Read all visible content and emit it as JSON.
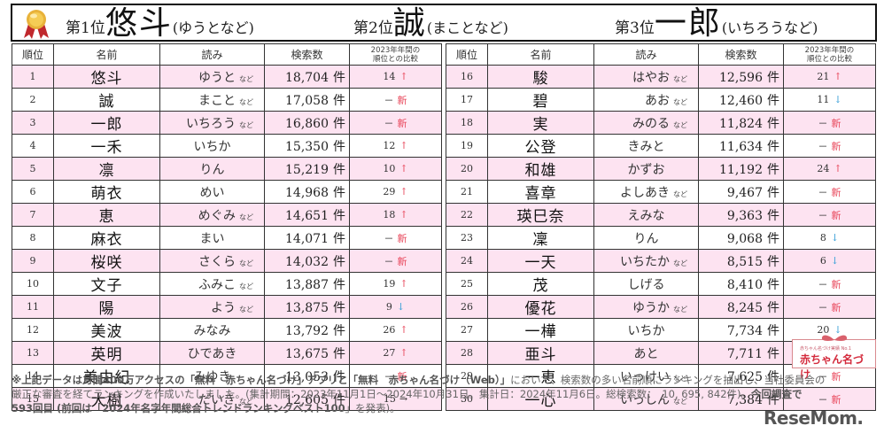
{
  "header": {
    "top3": [
      {
        "position_label": "第1位",
        "name": "悠斗",
        "reading": "(ゆうとなど)"
      },
      {
        "position_label": "第2位",
        "name": "誠",
        "reading": "(まことなど)"
      },
      {
        "position_label": "第3位",
        "name": "一郎",
        "reading": "(いちろうなど)"
      }
    ],
    "medal_icon": "gold-medal-ribbon-icon"
  },
  "table": {
    "columns": [
      "順位",
      "名前",
      "読み",
      "検索数",
      "2023年年間の",
      "順位との比較"
    ],
    "count_unit": "件",
    "nado_label": "など",
    "new_label": "新",
    "dash_label": "－",
    "colors": {
      "pink_row": "#fde3f1",
      "arrow_up": "#e8465a",
      "arrow_down": "#3aa0d8",
      "new": "#e8465a"
    },
    "left_rows": [
      {
        "rank": "1",
        "name": "悠斗",
        "reading": "ゆうと",
        "nado": true,
        "count": "18,704",
        "prev": "14",
        "change": "up"
      },
      {
        "rank": "2",
        "name": "誠",
        "reading": "まこと",
        "nado": true,
        "count": "17,058",
        "prev": "",
        "change": "new"
      },
      {
        "rank": "3",
        "name": "一郎",
        "reading": "いちろう",
        "nado": true,
        "count": "16,860",
        "prev": "",
        "change": "new"
      },
      {
        "rank": "4",
        "name": "一禾",
        "reading": "いちか",
        "nado": false,
        "count": "15,350",
        "prev": "12",
        "change": "up"
      },
      {
        "rank": "5",
        "name": "凛",
        "reading": "りん",
        "nado": false,
        "count": "15,219",
        "prev": "10",
        "change": "up"
      },
      {
        "rank": "6",
        "name": "萌衣",
        "reading": "めい",
        "nado": false,
        "count": "14,968",
        "prev": "29",
        "change": "up"
      },
      {
        "rank": "7",
        "name": "恵",
        "reading": "めぐみ",
        "nado": true,
        "count": "14,651",
        "prev": "18",
        "change": "up"
      },
      {
        "rank": "8",
        "name": "麻衣",
        "reading": "まい",
        "nado": false,
        "count": "14,071",
        "prev": "",
        "change": "new"
      },
      {
        "rank": "9",
        "name": "桜咲",
        "reading": "さくら",
        "nado": true,
        "count": "14,032",
        "prev": "",
        "change": "new"
      },
      {
        "rank": "10",
        "name": "文子",
        "reading": "ふみこ",
        "nado": true,
        "count": "13,887",
        "prev": "19",
        "change": "up"
      },
      {
        "rank": "11",
        "name": "陽",
        "reading": "よう",
        "nado": true,
        "count": "13,875",
        "prev": "9",
        "change": "down"
      },
      {
        "rank": "12",
        "name": "美波",
        "reading": "みなみ",
        "nado": false,
        "count": "13,792",
        "prev": "26",
        "change": "up"
      },
      {
        "rank": "13",
        "name": "英明",
        "reading": "ひであき",
        "nado": false,
        "count": "13,675",
        "prev": "27",
        "change": "up"
      },
      {
        "rank": "14",
        "name": "美由紀",
        "reading": "みゆき",
        "nado": false,
        "count": "13,053",
        "prev": "",
        "change": "new"
      },
      {
        "rank": "15",
        "name": "大樹",
        "reading": "だいき",
        "nado": true,
        "count": "12,605",
        "prev": "15",
        "change": "same"
      }
    ],
    "right_rows": [
      {
        "rank": "16",
        "name": "駿",
        "reading": "はやお",
        "nado": true,
        "count": "12,596",
        "prev": "21",
        "change": "up"
      },
      {
        "rank": "17",
        "name": "碧",
        "reading": "あお",
        "nado": true,
        "count": "12,460",
        "prev": "11",
        "change": "down"
      },
      {
        "rank": "18",
        "name": "実",
        "reading": "みのる",
        "nado": true,
        "count": "11,824",
        "prev": "",
        "change": "new"
      },
      {
        "rank": "19",
        "name": "公登",
        "reading": "きみと",
        "nado": false,
        "count": "11,634",
        "prev": "",
        "change": "new"
      },
      {
        "rank": "20",
        "name": "和雄",
        "reading": "かずお",
        "nado": false,
        "count": "11,192",
        "prev": "24",
        "change": "up"
      },
      {
        "rank": "21",
        "name": "喜章",
        "reading": "よしあき",
        "nado": true,
        "count": "9,467",
        "prev": "",
        "change": "new"
      },
      {
        "rank": "22",
        "name": "瑛巳奈",
        "reading": "えみな",
        "nado": false,
        "count": "9,363",
        "prev": "",
        "change": "new"
      },
      {
        "rank": "23",
        "name": "凜",
        "reading": "りん",
        "nado": false,
        "count": "9,068",
        "prev": "8",
        "change": "down"
      },
      {
        "rank": "24",
        "name": "一天",
        "reading": "いちたか",
        "nado": true,
        "count": "8,515",
        "prev": "6",
        "change": "down"
      },
      {
        "rank": "25",
        "name": "茂",
        "reading": "しげる",
        "nado": false,
        "count": "8,410",
        "prev": "",
        "change": "new"
      },
      {
        "rank": "26",
        "name": "優花",
        "reading": "ゆうか",
        "nado": true,
        "count": "8,245",
        "prev": "",
        "change": "new"
      },
      {
        "rank": "27",
        "name": "一樺",
        "reading": "いちか",
        "nado": false,
        "count": "7,734",
        "prev": "20",
        "change": "down"
      },
      {
        "rank": "28",
        "name": "亜斗",
        "reading": "あと",
        "nado": false,
        "count": "7,711",
        "prev": "30",
        "change": "up"
      },
      {
        "rank": "29",
        "name": "一恵",
        "reading": "いっけい",
        "nado": true,
        "count": "7,625",
        "prev": "",
        "change": "new"
      },
      {
        "rank": "30",
        "name": "一心",
        "reading": "いっしん",
        "nado": true,
        "count": "7,384",
        "prev": "",
        "change": "new"
      }
    ]
  },
  "logo_akachan": {
    "small": "赤ちゃん名づけ実績 No.1",
    "main": "赤ちゃん名づけ"
  },
  "footnote": {
    "line1_bold": "※上記データは月間400万アクセスの「無料　赤ちゃん名づけ」アプリと「無料　赤ちゃん名づけ（Web）」",
    "line1_rest": "において、検索数の多い名前順にランキングを抽出し、当社委員会の",
    "line2": "厳正な審査を経てランキングを作成いたしました。(集計期間：2023年11月1日～2024年10月31日。集計日：2024年11月6日。総検索数：　10, 695, 842件)。",
    "line2_bold": "今回調査で",
    "line3_bold": "593回目 (前回は「2024年名字年間総合トレンドランキングベスト100",
    "line3_rest": "」を発表)。"
  },
  "watermark": "ReseMom."
}
